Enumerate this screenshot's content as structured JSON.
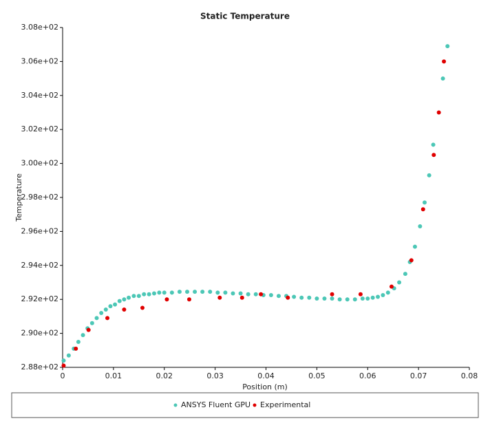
{
  "chart_data": {
    "type": "scatter",
    "title": "Static Temperature",
    "x_label": "Position (m)",
    "y_label": "Temperature",
    "xlim": [
      0,
      0.08
    ],
    "xticks": [
      0,
      0.01,
      0.02,
      0.03,
      0.04,
      0.05,
      0.06,
      0.07,
      0.08
    ],
    "ylim": [
      288,
      308
    ],
    "yticks": [
      {
        "value": 288,
        "label": "2.88e+02"
      },
      {
        "value": 290,
        "label": "2.90e+02"
      },
      {
        "value": 292,
        "label": "2.92e+02"
      },
      {
        "value": 294,
        "label": "2.94e+02"
      },
      {
        "value": 296,
        "label": "2.96e+02"
      },
      {
        "value": 298,
        "label": "2.98e+02"
      },
      {
        "value": 300,
        "label": "3.00e+02"
      },
      {
        "value": 302,
        "label": "3.02e+02"
      },
      {
        "value": 304,
        "label": "3.04e+02"
      },
      {
        "value": 306,
        "label": "3.06e+02"
      },
      {
        "value": 308,
        "label": "3.08e+02"
      }
    ],
    "series": [
      {
        "name": "ANSYS Fluent GPU",
        "color": "#4cc7b6",
        "x": [
          0.0002,
          0.0012,
          0.0022,
          0.0031,
          0.004,
          0.0049,
          0.0058,
          0.0067,
          0.0076,
          0.0085,
          0.0094,
          0.0103,
          0.0112,
          0.0121,
          0.013,
          0.014,
          0.015,
          0.016,
          0.017,
          0.018,
          0.019,
          0.02,
          0.0215,
          0.023,
          0.0245,
          0.026,
          0.0275,
          0.029,
          0.0305,
          0.032,
          0.0335,
          0.035,
          0.0365,
          0.038,
          0.0395,
          0.041,
          0.0425,
          0.044,
          0.0455,
          0.047,
          0.0485,
          0.05,
          0.0515,
          0.053,
          0.0545,
          0.056,
          0.0575,
          0.059,
          0.06,
          0.061,
          0.062,
          0.063,
          0.064,
          0.0652,
          0.0662,
          0.0674,
          0.0683,
          0.0693,
          0.0703,
          0.0712,
          0.0721,
          0.0729,
          0.0748,
          0.0757
        ],
        "values": [
          288.4,
          288.7,
          289.1,
          289.5,
          289.9,
          290.3,
          290.6,
          290.9,
          291.2,
          291.4,
          291.6,
          291.7,
          291.9,
          292.0,
          292.1,
          292.2,
          292.2,
          292.3,
          292.3,
          292.35,
          292.4,
          292.4,
          292.4,
          292.45,
          292.45,
          292.45,
          292.45,
          292.45,
          292.4,
          292.4,
          292.35,
          292.35,
          292.3,
          292.3,
          292.25,
          292.25,
          292.2,
          292.2,
          292.15,
          292.1,
          292.1,
          292.05,
          292.05,
          292.05,
          292.0,
          292.0,
          292.0,
          292.05,
          292.05,
          292.1,
          292.15,
          292.25,
          292.4,
          292.65,
          293.0,
          293.5,
          294.2,
          295.1,
          296.3,
          297.7,
          299.3,
          301.1,
          305.0,
          306.9
        ]
      },
      {
        "name": "Experimental",
        "color": "#e00000",
        "x": [
          0.0002,
          0.0026,
          0.0051,
          0.0088,
          0.0121,
          0.0157,
          0.0205,
          0.0249,
          0.0309,
          0.0353,
          0.039,
          0.0443,
          0.053,
          0.0586,
          0.0647,
          0.0686,
          0.0709,
          0.073,
          0.074,
          0.075
        ],
        "values": [
          288.1,
          289.1,
          290.2,
          290.9,
          291.4,
          291.5,
          292.0,
          292.0,
          292.1,
          292.1,
          292.3,
          292.1,
          292.3,
          292.3,
          292.75,
          294.3,
          297.3,
          300.5,
          303.0,
          306.0
        ]
      }
    ]
  }
}
